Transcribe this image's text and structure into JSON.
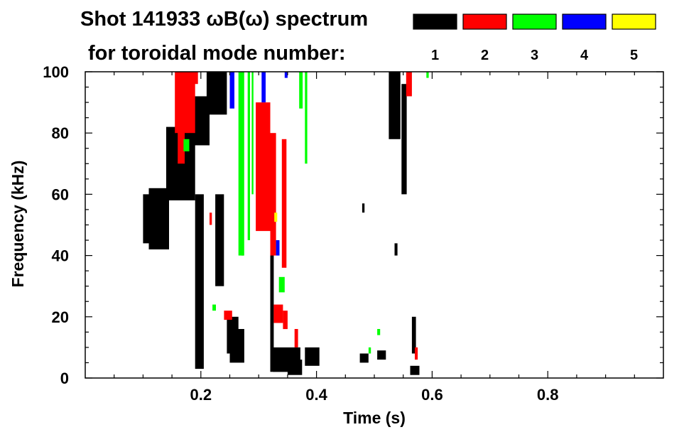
{
  "chart_data": {
    "type": "heatmap",
    "title": "Shot 141933 ωB(ω) spectrum",
    "subtitle": "for toroidal mode number:",
    "xlabel": "Time (s)",
    "ylabel": "Frequency (kHz)",
    "xlim": [
      0.0,
      1.0
    ],
    "ylim": [
      0,
      100
    ],
    "x_ticks": [
      "0.2",
      "0.4",
      "0.6",
      "0.8"
    ],
    "x_tick_values": [
      0.2,
      0.4,
      0.6,
      0.8
    ],
    "y_ticks": [
      "0",
      "20",
      "40",
      "60",
      "80",
      "100"
    ],
    "y_tick_values": [
      0,
      20,
      40,
      60,
      80,
      100
    ],
    "grid": false,
    "legend_placement": "top-right",
    "series": [
      {
        "name": "1",
        "color": "#000000",
        "regions": [
          {
            "t": [
              0.1,
              0.112
            ],
            "f": [
              44,
              60
            ]
          },
          {
            "t": [
              0.11,
              0.145
            ],
            "f": [
              42,
              62
            ]
          },
          {
            "t": [
              0.14,
              0.19
            ],
            "f": [
              58,
              82
            ]
          },
          {
            "t": [
              0.185,
              0.215
            ],
            "f": [
              76,
              92
            ]
          },
          {
            "t": [
              0.21,
              0.245
            ],
            "f": [
              86,
              100
            ]
          },
          {
            "t": [
              0.19,
              0.205
            ],
            "f": [
              3,
              60
            ]
          },
          {
            "t": [
              0.225,
              0.24
            ],
            "f": [
              30,
              60
            ]
          },
          {
            "t": [
              0.245,
              0.265
            ],
            "f": [
              8,
              20
            ]
          },
          {
            "t": [
              0.25,
              0.275
            ],
            "f": [
              5,
              16
            ]
          },
          {
            "t": [
              0.325,
              0.372
            ],
            "f": [
              2,
              10
            ]
          },
          {
            "t": [
              0.35,
              0.375
            ],
            "f": [
              1,
              6
            ]
          },
          {
            "t": [
              0.38,
              0.405
            ],
            "f": [
              4,
              10
            ]
          },
          {
            "t": [
              0.32,
              0.326
            ],
            "f": [
              2,
              55
            ]
          },
          {
            "t": [
              0.27,
              0.274
            ],
            "f": [
              40,
              100
            ]
          },
          {
            "t": [
              0.525,
              0.545
            ],
            "f": [
              78,
              100
            ]
          },
          {
            "t": [
              0.547,
              0.556
            ],
            "f": [
              60,
              96
            ]
          },
          {
            "t": [
              0.562,
              0.578
            ],
            "f": [
              1,
              4
            ]
          },
          {
            "t": [
              0.565,
              0.572
            ],
            "f": [
              8,
              20
            ]
          },
          {
            "t": [
              0.475,
              0.49
            ],
            "f": [
              5,
              8
            ]
          },
          {
            "t": [
              0.505,
              0.52
            ],
            "f": [
              6,
              9
            ]
          },
          {
            "t": [
              0.535,
              0.54
            ],
            "f": [
              40,
              44
            ]
          },
          {
            "t": [
              0.479,
              0.483
            ],
            "f": [
              54,
              57
            ]
          }
        ]
      },
      {
        "name": "2",
        "color": "#ff0000",
        "regions": [
          {
            "t": [
              0.155,
              0.19
            ],
            "f": [
              80,
              100
            ]
          },
          {
            "t": [
              0.16,
              0.172
            ],
            "f": [
              70,
              82
            ]
          },
          {
            "t": [
              0.185,
              0.195
            ],
            "f": [
              96,
              100
            ]
          },
          {
            "t": [
              0.295,
              0.32
            ],
            "f": [
              48,
              90
            ]
          },
          {
            "t": [
              0.32,
              0.33
            ],
            "f": [
              40,
              80
            ]
          },
          {
            "t": [
              0.34,
              0.348
            ],
            "f": [
              36,
              78
            ]
          },
          {
            "t": [
              0.326,
              0.342
            ],
            "f": [
              18,
              24
            ]
          },
          {
            "t": [
              0.342,
              0.35
            ],
            "f": [
              16,
              22
            ]
          },
          {
            "t": [
              0.24,
              0.254
            ],
            "f": [
              19,
              22
            ]
          },
          {
            "t": [
              0.555,
              0.565
            ],
            "f": [
              92,
              100
            ]
          },
          {
            "t": [
              0.57,
              0.575
            ],
            "f": [
              6,
              10
            ]
          },
          {
            "t": [
              0.362,
              0.368
            ],
            "f": [
              10,
              16
            ]
          },
          {
            "t": [
              0.215,
              0.219
            ],
            "f": [
              50,
              54
            ]
          }
        ]
      },
      {
        "name": "3",
        "color": "#00ff00",
        "regions": [
          {
            "t": [
              0.265,
              0.275
            ],
            "f": [
              40,
              100
            ]
          },
          {
            "t": [
              0.281,
              0.285
            ],
            "f": [
              45,
              100
            ]
          },
          {
            "t": [
              0.288,
              0.291
            ],
            "f": [
              60,
              100
            ]
          },
          {
            "t": [
              0.335,
              0.345
            ],
            "f": [
              28,
              33
            ]
          },
          {
            "t": [
              0.37,
              0.376
            ],
            "f": [
              88,
              100
            ]
          },
          {
            "t": [
              0.38,
              0.384
            ],
            "f": [
              70,
              100
            ]
          },
          {
            "t": [
              0.17,
              0.18
            ],
            "f": [
              74,
              78
            ]
          },
          {
            "t": [
              0.22,
              0.226
            ],
            "f": [
              22,
              24
            ]
          },
          {
            "t": [
              0.59,
              0.594
            ],
            "f": [
              98,
              100
            ]
          },
          {
            "t": [
              0.505,
              0.51
            ],
            "f": [
              14,
              16
            ]
          },
          {
            "t": [
              0.49,
              0.494
            ],
            "f": [
              8,
              10
            ]
          }
        ]
      },
      {
        "name": "4",
        "color": "#0000ff",
        "regions": [
          {
            "t": [
              0.25,
              0.258
            ],
            "f": [
              88,
              100
            ]
          },
          {
            "t": [
              0.305,
              0.312
            ],
            "f": [
              90,
              100
            ]
          },
          {
            "t": [
              0.33,
              0.336
            ],
            "f": [
              40,
              45
            ]
          },
          {
            "t": [
              0.345,
              0.35
            ],
            "f": [
              98,
              100
            ]
          }
        ]
      },
      {
        "name": "5",
        "color": "#ffff00",
        "regions": [
          {
            "t": [
              0.327,
              0.332
            ],
            "f": [
              51,
              54
            ]
          }
        ]
      }
    ]
  }
}
